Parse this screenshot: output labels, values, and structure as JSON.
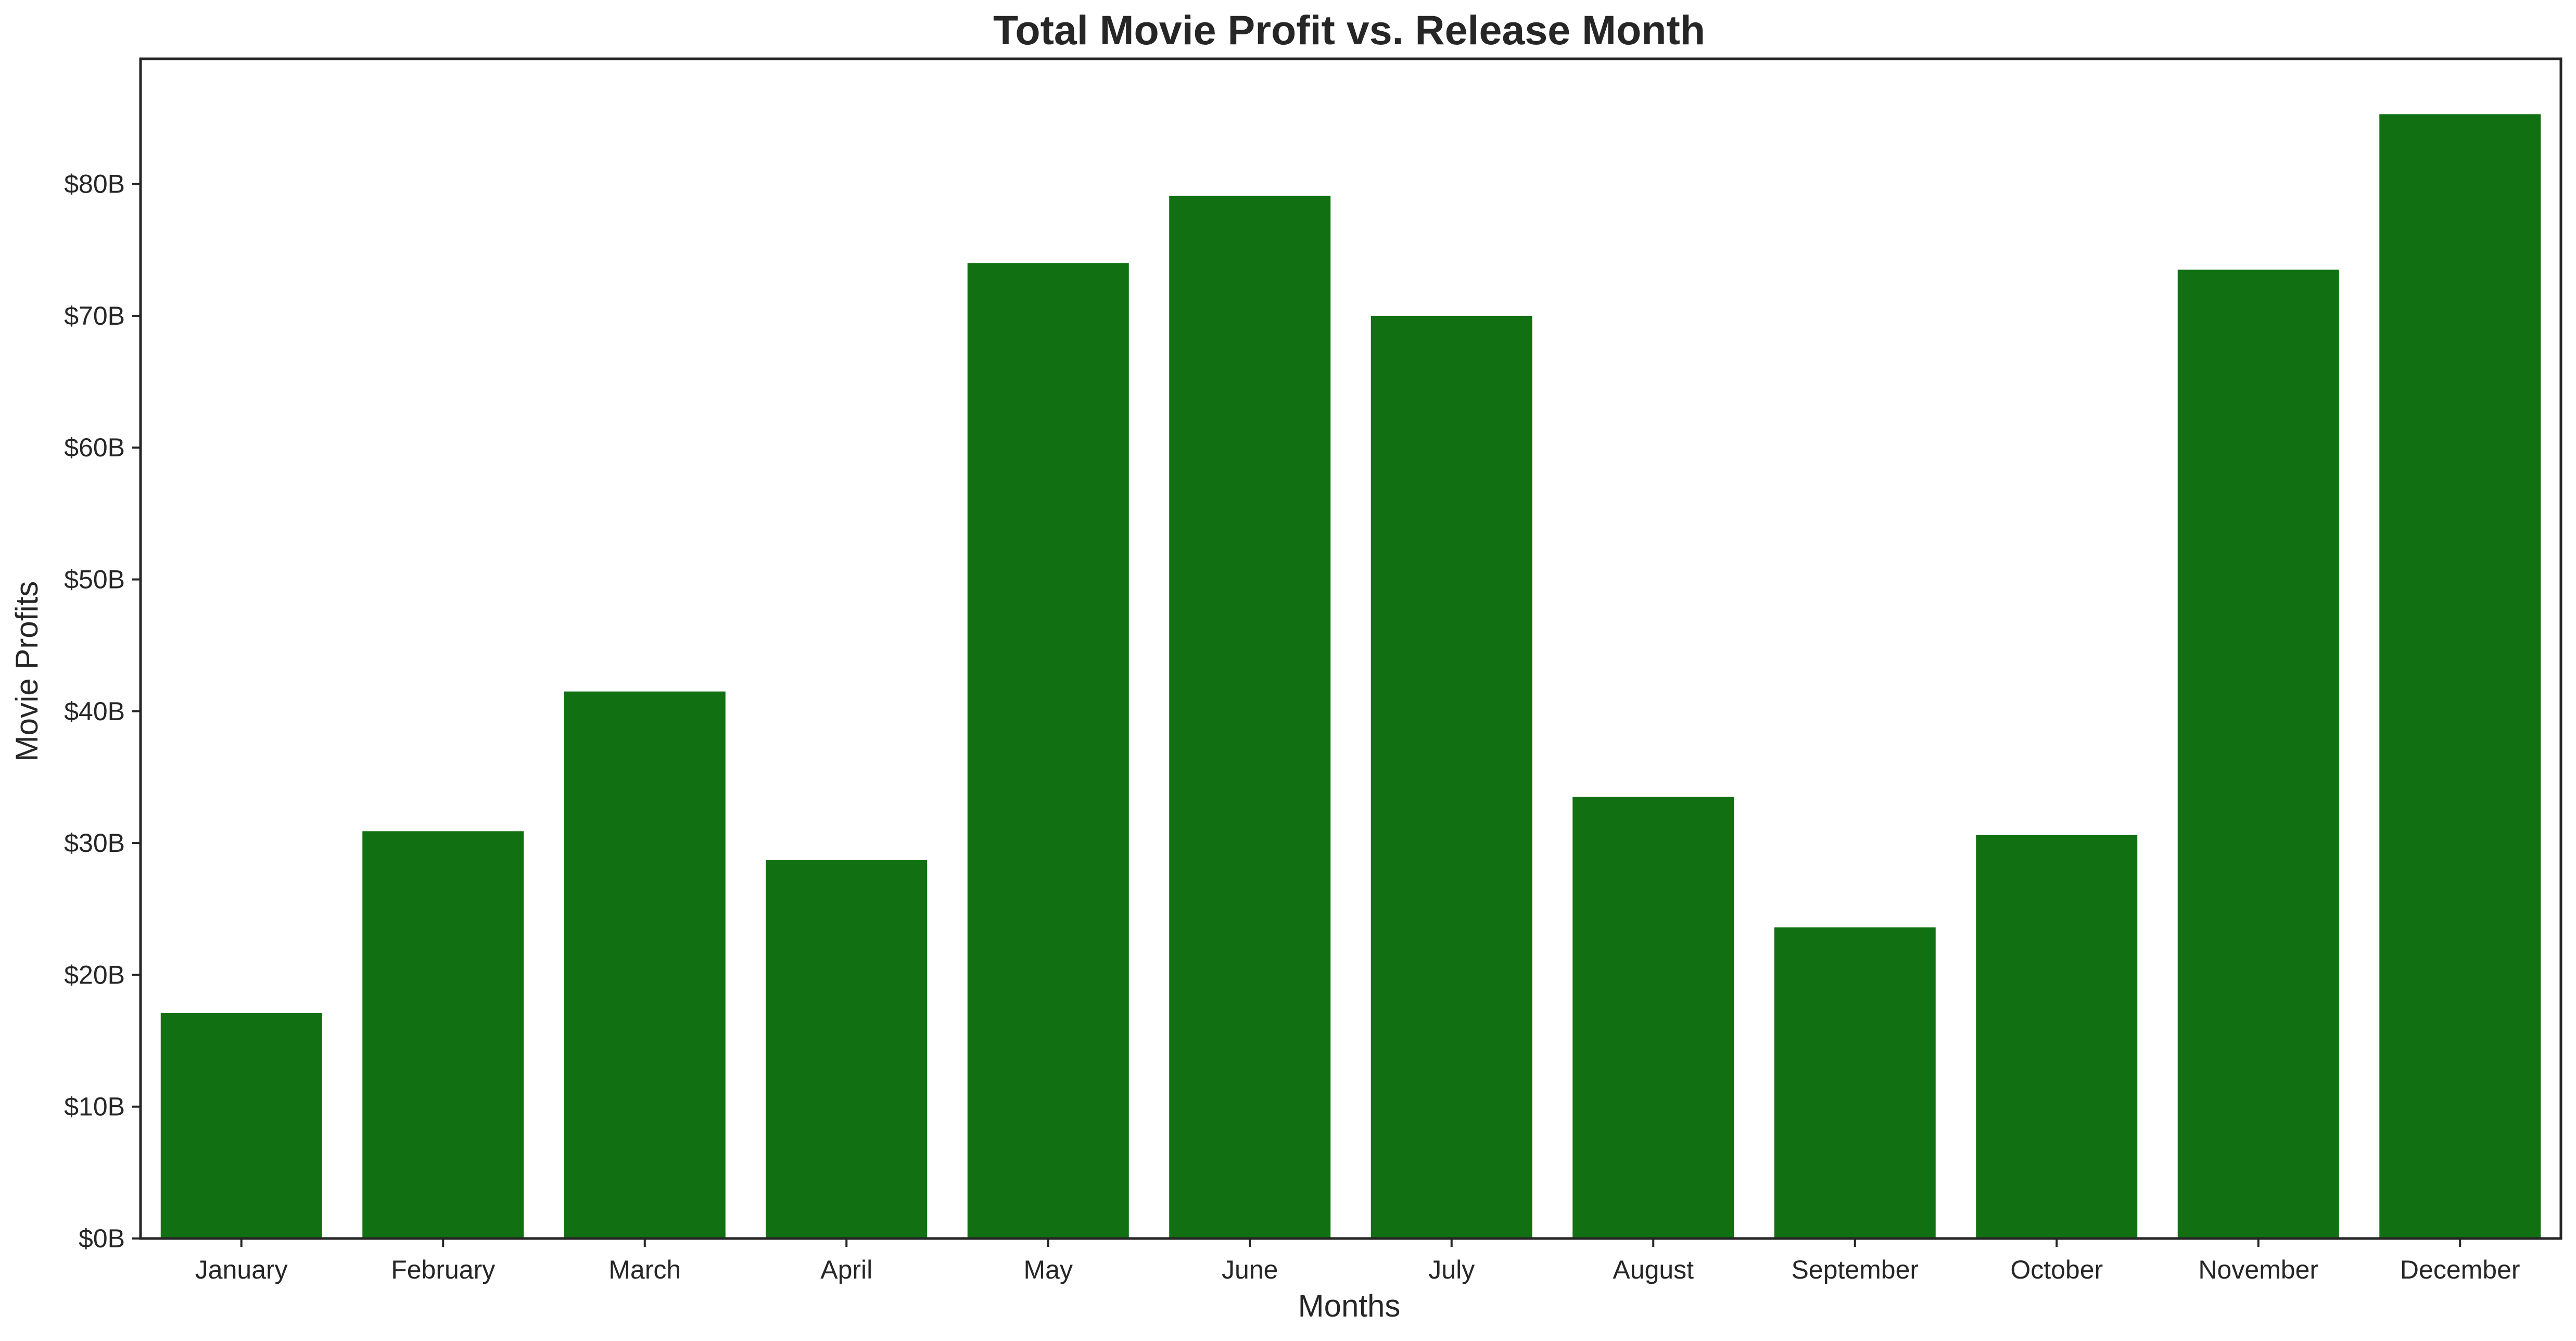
{
  "colors": {
    "bar": "#117011",
    "axis": "#262626",
    "background": "#ffffff"
  },
  "chart_data": {
    "type": "bar",
    "title": "Total Movie Profit vs. Release Month",
    "xlabel": "Months",
    "ylabel": "Movie Profits",
    "categories": [
      "January",
      "February",
      "March",
      "April",
      "May",
      "June",
      "July",
      "August",
      "September",
      "October",
      "November",
      "December"
    ],
    "values": [
      17.1,
      30.9,
      41.5,
      28.7,
      74.0,
      79.1,
      70.0,
      33.5,
      23.6,
      30.6,
      73.5,
      85.3
    ],
    "value_unit": "billions of dollars",
    "ylim": [
      0,
      89.5
    ],
    "yticks": [
      0,
      10,
      20,
      30,
      40,
      50,
      60,
      70,
      80
    ],
    "ytick_labels": [
      "$0B",
      "$10B",
      "$20B",
      "$30B",
      "$40B",
      "$50B",
      "$60B",
      "$70B",
      "$80B"
    ],
    "grid": false,
    "legend": "none"
  }
}
